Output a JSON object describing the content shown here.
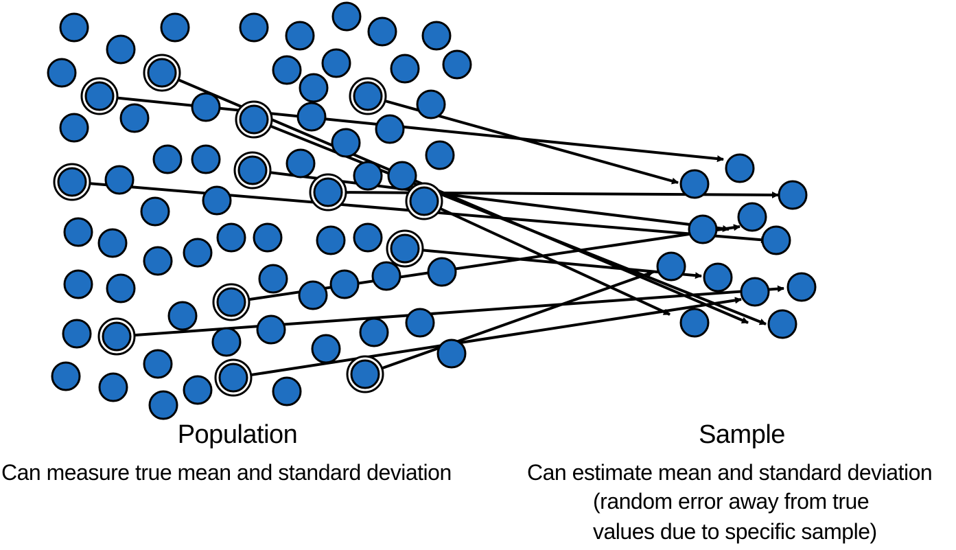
{
  "diagram": {
    "colors": {
      "dot_fill": "#1f6fc1",
      "stroke": "#000000",
      "background": "#ffffff"
    },
    "population": {
      "title": "Population",
      "description": "Can measure true mean and standard deviation"
    },
    "sample": {
      "title": "Sample",
      "description": "Can estimate mean and standard deviation",
      "note": "(random error away from true values due to specific sample)"
    }
  }
}
